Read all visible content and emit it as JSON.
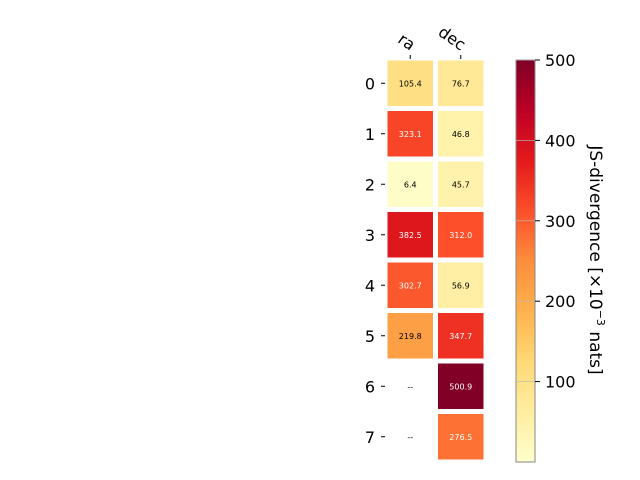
{
  "chart_data": {
    "type": "heatmap",
    "columns": [
      "ra",
      "dec"
    ],
    "rows": [
      "0",
      "1",
      "2",
      "3",
      "4",
      "5",
      "6",
      "7"
    ],
    "values": [
      [
        105.4,
        76.7
      ],
      [
        323.1,
        46.8
      ],
      [
        6.4,
        45.7
      ],
      [
        382.5,
        312.0
      ],
      [
        302.7,
        56.9
      ],
      [
        219.8,
        347.7
      ],
      [
        null,
        500.9
      ],
      [
        null,
        276.5
      ]
    ],
    "cell_labels": [
      [
        "105.4",
        "76.7"
      ],
      [
        "323.1",
        "46.8"
      ],
      [
        "6.4",
        "45.7"
      ],
      [
        "382.5",
        "312.0"
      ],
      [
        "302.7",
        "56.9"
      ],
      [
        "219.8",
        "347.7"
      ],
      [
        "--",
        "500.9"
      ],
      [
        "--",
        "276.5"
      ]
    ],
    "colorbar": {
      "label_prefix": "JS-divergence [×10",
      "label_exponent": "−3",
      "label_suffix": " nats]",
      "range": [
        0,
        500
      ],
      "ticks": [
        100,
        200,
        300,
        400,
        500
      ],
      "colormap": "YlOrRd"
    }
  }
}
